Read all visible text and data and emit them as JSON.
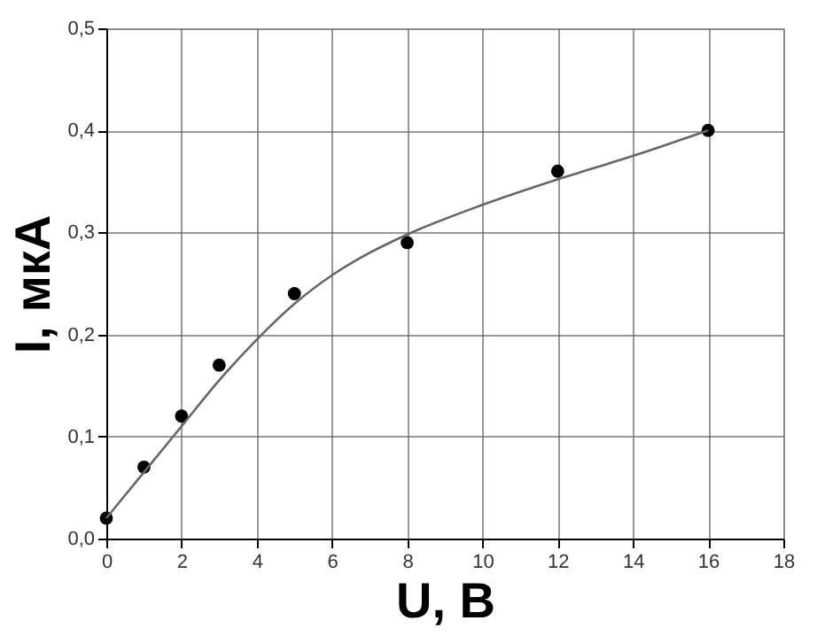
{
  "chart_data": {
    "type": "scatter",
    "xlabel": "U, B",
    "ylabel": "I, мкА",
    "xlim": [
      0,
      18
    ],
    "xticks": [
      0,
      2,
      4,
      6,
      8,
      10,
      12,
      14,
      16,
      18
    ],
    "ylim": [
      0,
      0.5
    ],
    "yticks": [
      {
        "value": 0,
        "label": "0,0"
      },
      {
        "value": 0.1,
        "label": "0,1"
      },
      {
        "value": 0.2,
        "label": "0,2"
      },
      {
        "value": 0.3,
        "label": "0,3"
      },
      {
        "value": 0.4,
        "label": "0,4"
      },
      {
        "value": 0.5,
        "label": "0,5"
      }
    ],
    "grid": true,
    "series": [
      {
        "color": "#000000",
        "marker": "circle",
        "x": [
          0,
          1,
          2,
          3,
          5,
          8,
          12,
          16
        ],
        "values": [
          0.02,
          0.07,
          0.12,
          0.17,
          0.24,
          0.29,
          0.36,
          0.4
        ]
      },
      {
        "type": "line",
        "color": "#666666",
        "line_style": "solid",
        "x": [
          0,
          1,
          2,
          3,
          4,
          5,
          6,
          7,
          8,
          10,
          12,
          14,
          16
        ],
        "values": [
          0.02,
          0.065,
          0.11,
          0.155,
          0.195,
          0.23,
          0.258,
          0.28,
          0.298,
          0.327,
          0.352,
          0.375,
          0.4
        ]
      }
    ]
  }
}
